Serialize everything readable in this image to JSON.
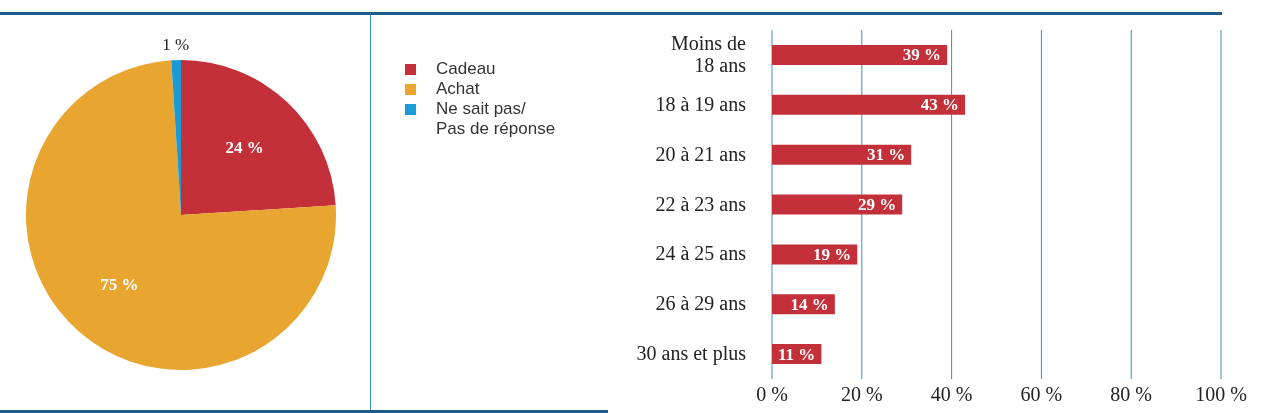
{
  "chart_data": [
    {
      "type": "pie",
      "categories": [
        "Cadeau",
        "Achat",
        "Ne sait pas/\nPas de réponse"
      ],
      "values": [
        24,
        75,
        1
      ],
      "colors": [
        "#c4303a",
        "#e8a630",
        "#1a9ad6"
      ],
      "value_labels": [
        "24 %",
        "75 %",
        "1 %"
      ],
      "legend": "right"
    },
    {
      "type": "bar",
      "orientation": "horizontal",
      "categories": [
        "Moins de\n18 ans",
        "18 à 19 ans",
        "20 à 21 ans",
        "22 à 23 ans",
        "24 à 25 ans",
        "26 à 29 ans",
        "30 ans et plus"
      ],
      "values": [
        39,
        43,
        31,
        29,
        19,
        14,
        11
      ],
      "color": "#c4303a",
      "value_labels": [
        "39 %",
        "43 %",
        "31 %",
        "29 %",
        "19 %",
        "14 %",
        "11 %"
      ],
      "xlim": [
        0,
        100
      ],
      "xticks": [
        {
          "value": 0,
          "label": "0 %"
        },
        {
          "value": 20,
          "label": "20 %"
        },
        {
          "value": 40,
          "label": "40 %"
        },
        {
          "value": 60,
          "label": "60 %"
        },
        {
          "value": 80,
          "label": "80 %"
        },
        {
          "value": 100,
          "label": "100 %"
        }
      ],
      "grid": "x"
    }
  ]
}
